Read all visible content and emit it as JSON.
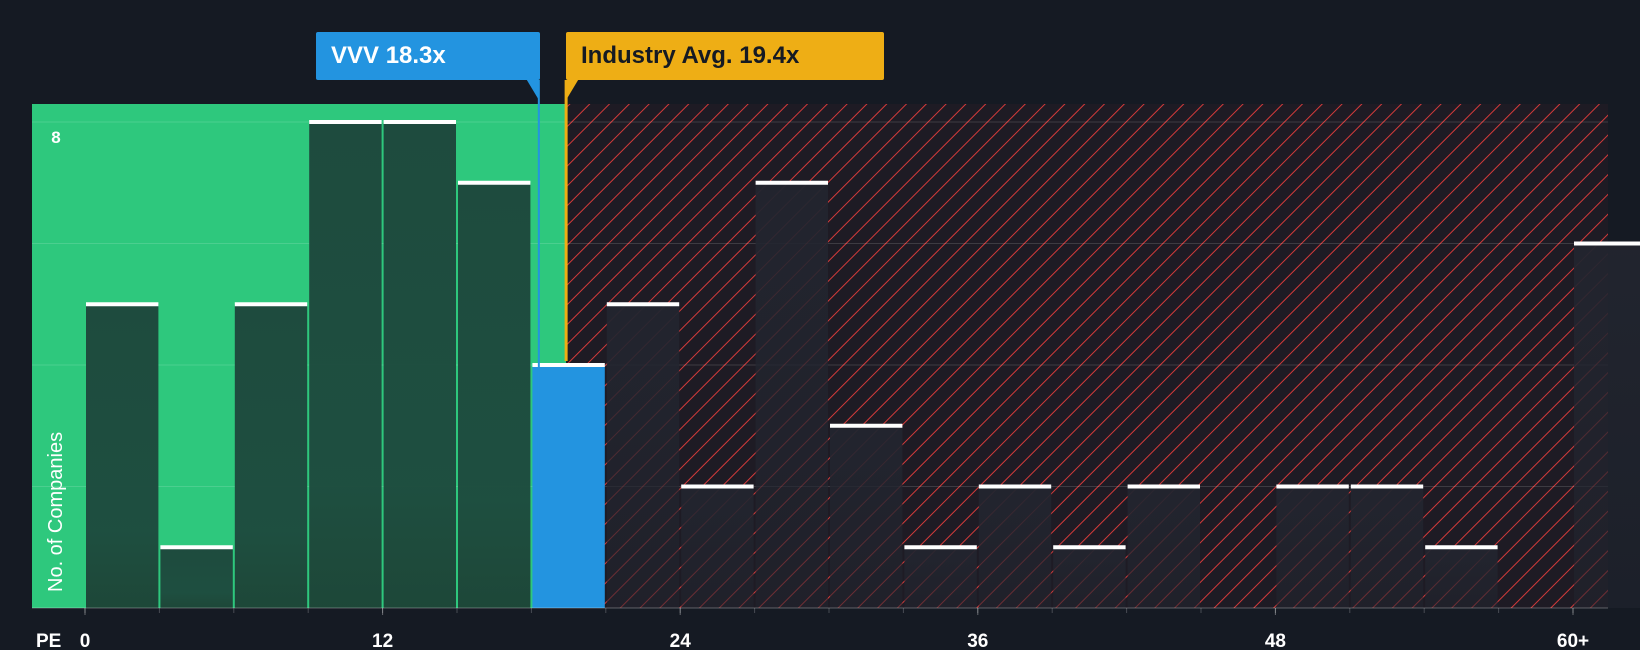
{
  "chart_data": {
    "type": "bar",
    "xlabel": "PE",
    "ylabel": "No. of Companies",
    "x_tick_labels": [
      "0",
      "12",
      "24",
      "36",
      "48",
      "60+"
    ],
    "x_ticks": [
      0,
      12,
      24,
      36,
      48,
      60
    ],
    "y_tick_labels": [
      "8"
    ],
    "y_ticks": [
      8
    ],
    "ylim": [
      0,
      8.3
    ],
    "xlim": [
      -2.2,
      61.5
    ],
    "bin_width": 3,
    "grid": true,
    "bins": [
      {
        "start": 0,
        "value": 5
      },
      {
        "start": 3,
        "value": 1
      },
      {
        "start": 6,
        "value": 5
      },
      {
        "start": 9,
        "value": 8
      },
      {
        "start": 12,
        "value": 8
      },
      {
        "start": 15,
        "value": 7
      },
      {
        "start": 18,
        "value": 4,
        "highlight": true
      },
      {
        "start": 21,
        "value": 5
      },
      {
        "start": 24,
        "value": 2
      },
      {
        "start": 27,
        "value": 7
      },
      {
        "start": 30,
        "value": 3
      },
      {
        "start": 33,
        "value": 1
      },
      {
        "start": 36,
        "value": 2
      },
      {
        "start": 39,
        "value": 1
      },
      {
        "start": 42,
        "value": 2
      },
      {
        "start": 45,
        "value": 0
      },
      {
        "start": 48,
        "value": 2
      },
      {
        "start": 51,
        "value": 2
      },
      {
        "start": 54,
        "value": 1
      },
      {
        "start": 57,
        "value": 0
      },
      {
        "start": 60,
        "value": 6
      }
    ],
    "markers": {
      "company": {
        "label": "VVV 18.3x",
        "value": 18.3
      },
      "industry": {
        "label": "Industry Avg. 19.4x",
        "value": 19.4
      }
    }
  },
  "colors": {
    "background": "#151a23",
    "undervalued_zone": "#2ec87d",
    "overvalued_hatch": "#d33a3a",
    "company": "#2394e0",
    "industry": "#eeae15",
    "bar_undervalued": "#1e4b3e",
    "bar_overvalued": "#22252f",
    "bar_cap": "#ffffff"
  }
}
